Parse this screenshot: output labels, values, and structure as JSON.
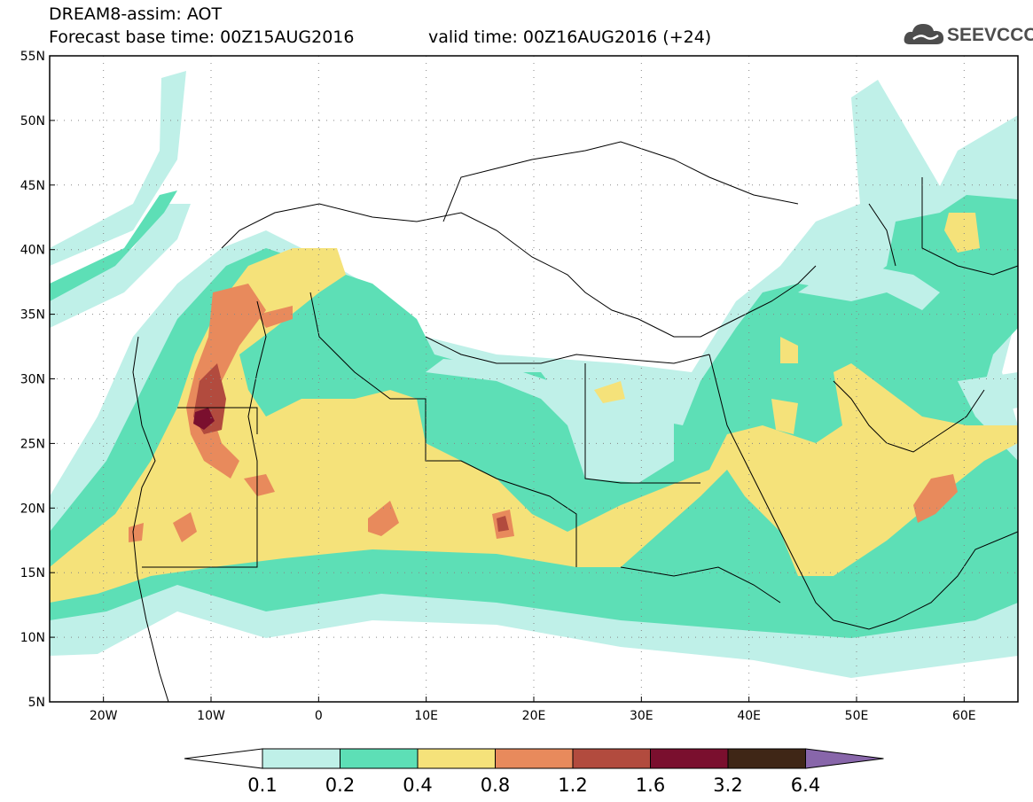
{
  "title": {
    "line1": "DREAM8-assim: AOT",
    "base_time": "Forecast base time: 00Z15AUG2016",
    "valid_time": "valid time: 00Z16AUG2016 (+24)"
  },
  "logo": {
    "text": "SEEVCCC",
    "icon": "cloud-icon"
  },
  "map": {
    "lat_labels": [
      "55N",
      "50N",
      "45N",
      "40N",
      "35N",
      "30N",
      "25N",
      "20N",
      "15N",
      "10N",
      "5N"
    ],
    "lat_values": [
      55,
      50,
      45,
      40,
      35,
      30,
      25,
      20,
      15,
      10,
      5
    ],
    "lon_labels": [
      "20W",
      "10W",
      "0",
      "10E",
      "20E",
      "30E",
      "40E",
      "50E",
      "60E"
    ],
    "lon_values": [
      -20,
      -10,
      0,
      10,
      20,
      30,
      40,
      50,
      60
    ],
    "lon_range": [
      -25,
      65
    ],
    "lat_range": [
      5,
      55
    ],
    "grid": "dotted"
  },
  "colorbar": {
    "labels": [
      "0.1",
      "0.2",
      "0.4",
      "0.8",
      "1.2",
      "1.6",
      "3.2",
      "6.4"
    ],
    "colors": [
      "#ffffff",
      "#bff0e8",
      "#5ddfb6",
      "#f5e27a",
      "#e88a5c",
      "#b24b3e",
      "#7a0f2e",
      "#3f2616",
      "#8866aa"
    ]
  },
  "legend_colors": {
    "low": "#bff0e8",
    "mid": "#5ddfb6",
    "yellow": "#f5e27a",
    "orange": "#e88a5c",
    "red": "#b24b3e",
    "dark": "#7a0f2e"
  }
}
